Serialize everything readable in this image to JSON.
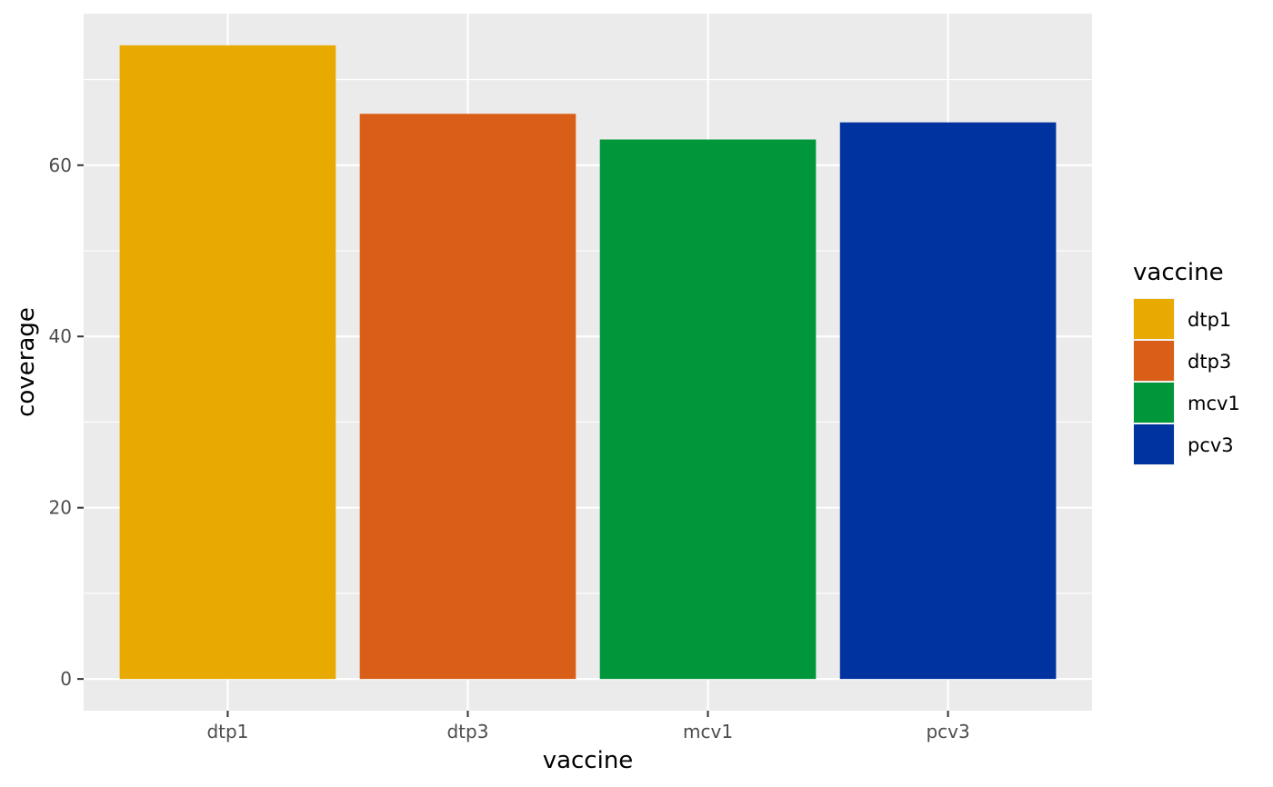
{
  "chart_data": {
    "type": "bar",
    "categories": [
      "dtp1",
      "dtp3",
      "mcv1",
      "pcv3"
    ],
    "values": [
      74,
      66,
      63,
      65
    ],
    "colors": [
      "#E8A900",
      "#D95F19",
      "#00963A",
      "#0033A0"
    ],
    "xlabel": "vaccine",
    "ylabel": "coverage",
    "ylim": [
      -3.7,
      77.7
    ],
    "yticks": [
      0,
      20,
      40,
      60
    ],
    "grid": true,
    "panel_background": "#EBEBEB",
    "legend": {
      "title": "vaccine",
      "position": "right",
      "items": [
        "dtp1",
        "dtp3",
        "mcv1",
        "pcv3"
      ]
    }
  }
}
